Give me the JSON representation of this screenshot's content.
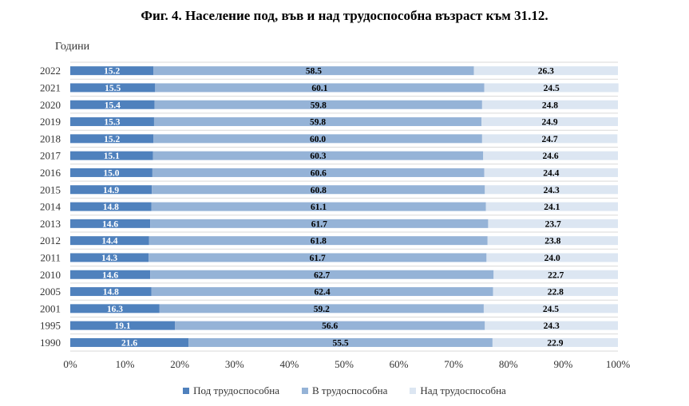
{
  "chart_data": {
    "type": "bar",
    "orientation": "horizontal",
    "stacked": true,
    "title": "Фиг. 4. Население под, във и над трудоспособна възраст към 31.12.",
    "ylabel": "Години",
    "xlabel": "",
    "xlim": [
      0,
      100
    ],
    "x_ticks": [
      "0%",
      "10%",
      "20%",
      "30%",
      "40%",
      "50%",
      "60%",
      "70%",
      "80%",
      "90%",
      "100%"
    ],
    "categories": [
      "2022",
      "2021",
      "2020",
      "2019",
      "2018",
      "2017",
      "2016",
      "2015",
      "2014",
      "2013",
      "2012",
      "2011",
      "2010",
      "2005",
      "2001",
      "1995",
      "1990"
    ],
    "series": [
      {
        "name": "Под трудоспособна",
        "color": "#4f81bd",
        "label_color": "#ffffff",
        "values": [
          15.2,
          15.5,
          15.4,
          15.3,
          15.2,
          15.1,
          15.0,
          14.9,
          14.8,
          14.6,
          14.4,
          14.3,
          14.6,
          14.8,
          16.3,
          19.1,
          21.6
        ]
      },
      {
        "name": "В трудоспособна",
        "color": "#95b3d7",
        "label_color": "#000000",
        "values": [
          58.5,
          60.1,
          59.8,
          59.8,
          60.0,
          60.3,
          60.6,
          60.8,
          61.1,
          61.7,
          61.8,
          61.7,
          62.7,
          62.4,
          59.2,
          56.6,
          55.5
        ]
      },
      {
        "name": "Над трудоспособна",
        "color": "#dce6f2",
        "label_color": "#000000",
        "values": [
          26.3,
          24.5,
          24.8,
          24.9,
          24.7,
          24.6,
          24.4,
          24.3,
          24.1,
          23.7,
          23.8,
          24.0,
          22.7,
          22.8,
          24.5,
          24.3,
          22.9
        ]
      }
    ],
    "value_labels": {
      "Под трудоспособна": [
        "15.2",
        "15.5",
        "15.4",
        "15.3",
        "15.2",
        "15.1",
        "15.0",
        "14.9",
        "14.8",
        "14.6",
        "14.4",
        "14.3",
        "14.6",
        "14.8",
        "16.3",
        "19.1",
        "21.6"
      ],
      "В трудоспособна": [
        "58.5",
        "60.1",
        "59.8",
        "59.8",
        "60.0",
        "60.3",
        "60.6",
        "60.8",
        "61.1",
        "61.7",
        "61.8",
        "61.7",
        "62.7",
        "62.4",
        "59.2",
        "56.6",
        "55.5"
      ],
      "Над трудоспособна": [
        "26.3",
        "24.5",
        "24.8",
        "24.9",
        "24.7",
        "24.6",
        "24.4",
        "24.3",
        "24.1",
        "23.7",
        "23.8",
        "24.0",
        "22.7",
        "22.8",
        "24.5",
        "24.3",
        "22.9"
      ]
    },
    "grid": true,
    "legend_position": "bottom"
  }
}
